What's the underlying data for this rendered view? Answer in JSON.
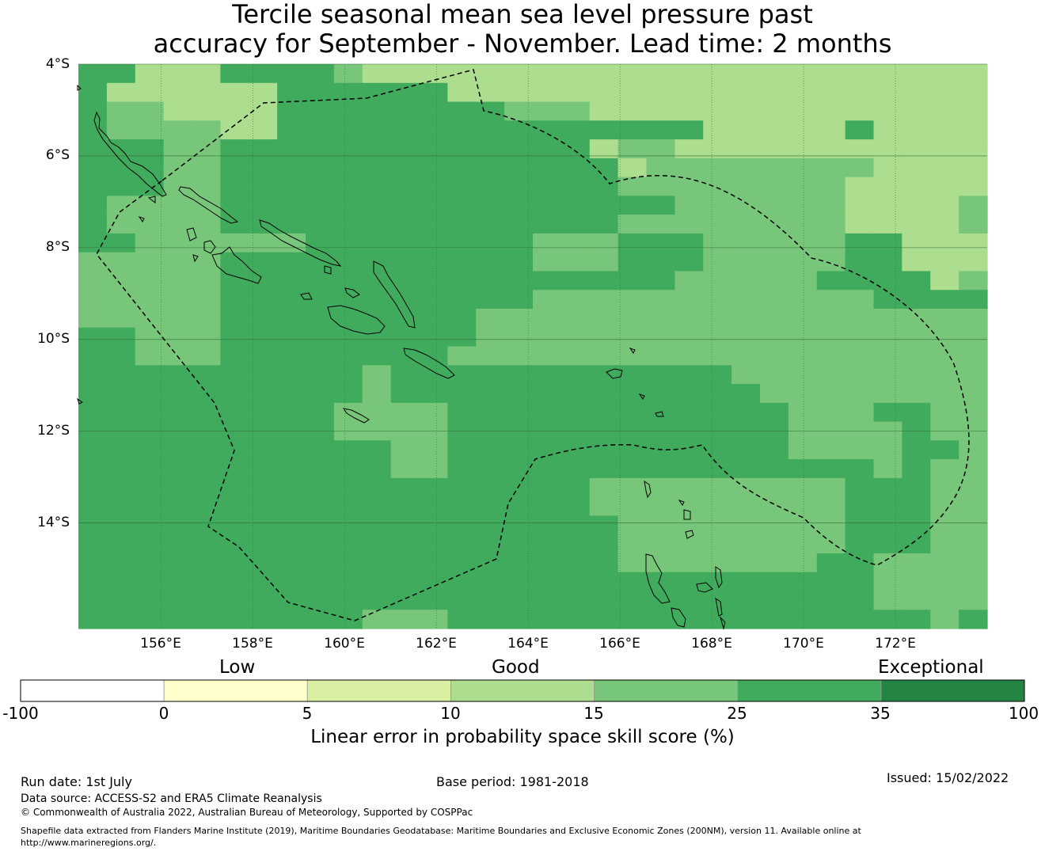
{
  "title": {
    "line1": "Tercile seasonal mean sea level pressure past",
    "line2": "accuracy for September - November. Lead time: 2 months"
  },
  "map": {
    "lat_labels": [
      "4°S",
      "6°S",
      "8°S",
      "10°S",
      "12°S",
      "14°S"
    ],
    "lat_values": [
      -4,
      -6,
      -8,
      -10,
      -12,
      -14
    ],
    "lon_labels": [
      "156°E",
      "158°E",
      "160°E",
      "162°E",
      "164°E",
      "166°E",
      "168°E",
      "170°E",
      "172°E"
    ],
    "lon_values": [
      156,
      158,
      160,
      162,
      164,
      166,
      168,
      170,
      172
    ],
    "lon_range": [
      154.2,
      174.0
    ],
    "lat_range": [
      -16.3,
      -4.0
    ],
    "grid_resolution_deg": 0.833,
    "skill_classes_legend": "1 = 10-15, 2 = 15-25, 3 = 25-35",
    "skill_grid": [
      "33111333321111111111101111101111",
      "31111113333331111111101111111111",
      "32211113333333322211111111111111",
      "32222113333333333333331111131111",
      "33322333333333333312211111111111",
      "33322333333333333331222222221111",
      "33322333333333333332222222211111",
      "32222333333333333333322222211112",
      "32222333333333333332222222211112",
      "33222222333333332223332222233111",
      "22222333333333332223332222233111",
      "22222333333333333333322222333312",
      "22222333333333332222222222223333",
      "22222333333333222222222222222222",
      "33222333333333222222222222222222",
      "33222333333332222222222222222222",
      "33333333332333333333333222222222",
      "33333333332333333333333322222222",
      "33333333322223333333333332223322",
      "33333333322223333333333332222322",
      "33333333333223333333333332222332",
      "33333333333223333333333333332322",
      "33333333333333333322222222233322",
      "33333333333333333322222222233322",
      "33333333333333333332222222233322",
      "33333333333333333332222222233322",
      "33333333333333333332222222332222",
      "33333333333333333333333333332222",
      "33333333333333333333333333332222",
      "33333333332223333333333333333323"
    ]
  },
  "colorbar": {
    "categories": [
      "Low",
      "Good",
      "Exceptional"
    ],
    "ticks": [
      "-100",
      "0",
      "5",
      "10",
      "15",
      "25",
      "35",
      "100"
    ],
    "colors": [
      "#ffffff",
      "#ffffcc",
      "#d9f0a3",
      "#addd8e",
      "#78c679",
      "#41ab5d",
      "#238443"
    ],
    "label": "Linear error in probability space skill score (%)"
  },
  "footer": {
    "run_date": "Run date: 1st July",
    "base_period": "Base period: 1981-2018",
    "issued": "Issued: 15/02/2022",
    "data_source": "Data source: ACCESS-S2 and ERA5 Climate Reanalysis",
    "copyright": "© Commonwealth of Australia 2022, Australian Bureau of Meteorology, Supported by COSPPac",
    "shapefile_line1": "Shapefile data extracted from Flanders Marine Institute (2019), Maritime Boundaries Geodatabase: Maritime Boundaries and Exclusive Economic Zones (200NM), version 11. Available online at",
    "shapefile_line2": "http://www.marineregions.org/."
  }
}
